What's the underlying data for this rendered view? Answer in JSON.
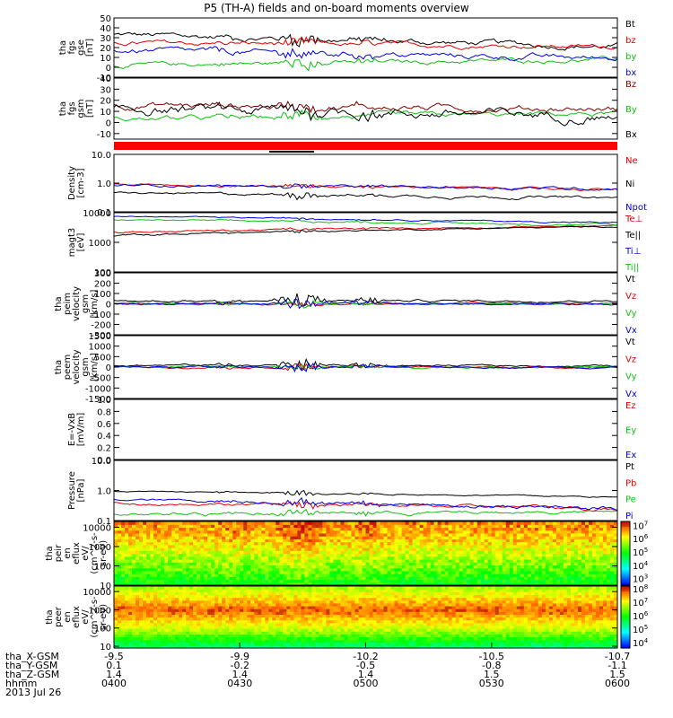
{
  "title": "P5 (TH-A) fields and on-board moments overview",
  "colors": {
    "black": "#000000",
    "red": "#e00000",
    "green": "#10c010",
    "blue": "#0000e0",
    "darkred": "#800000",
    "bar": "#ff0000"
  },
  "chart_data": [
    {
      "id": "fgs_gse",
      "type": "line",
      "ylabel": [
        "tha",
        "fgs",
        "gse",
        "[nT]"
      ],
      "ylim": [
        -10,
        50
      ],
      "ticks": [
        {
          "v": 50,
          "label": "50"
        },
        {
          "v": 40,
          "label": "40"
        },
        {
          "v": 30,
          "label": "30"
        },
        {
          "v": 20,
          "label": "20"
        },
        {
          "v": 10,
          "label": "10"
        },
        {
          "v": 0,
          "label": "0"
        },
        {
          "v": -10,
          "label": "-10"
        }
      ],
      "series": [
        {
          "name": "Bt",
          "color": "#000000",
          "base": 33,
          "amp": 4,
          "burst": 14,
          "trend": -12
        },
        {
          "name": "bz",
          "color": "#e00000",
          "base": 25,
          "amp": 3,
          "burst": 10,
          "trend": -4
        },
        {
          "name": "by",
          "color": "#10c010",
          "base": 2,
          "amp": 3,
          "burst": 12,
          "trend": 6
        },
        {
          "name": "bx",
          "color": "#0000e0",
          "base": 17,
          "amp": 4,
          "burst": 14,
          "trend": -8
        }
      ]
    },
    {
      "id": "fgs_gsm",
      "type": "line",
      "ylabel": [
        "tha",
        "fgs",
        "gsm",
        "[nT]"
      ],
      "ylim": [
        -15,
        40
      ],
      "ticks": [
        {
          "v": 40,
          "label": "40"
        },
        {
          "v": 30,
          "label": "30"
        },
        {
          "v": 20,
          "label": "20"
        },
        {
          "v": 10,
          "label": "10"
        },
        {
          "v": 0,
          "label": "0"
        },
        {
          "v": -10,
          "label": "-10"
        }
      ],
      "series": [
        {
          "name": "Bz",
          "color": "#800000",
          "base": 16,
          "amp": 4,
          "burst": 12,
          "trend": -4
        },
        {
          "name": "By",
          "color": "#10c010",
          "base": 3,
          "amp": 3,
          "burst": 10,
          "trend": 5
        },
        {
          "name": "Bx",
          "color": "#000000",
          "base": 12,
          "amp": 6,
          "burst": 16,
          "trend": -6
        }
      ]
    },
    {
      "id": "density",
      "type": "line",
      "log": true,
      "ylabel": [
        "Density",
        "[cm-3]"
      ],
      "ylim": [
        0.1,
        10
      ],
      "ticks": [
        {
          "v": 10,
          "label": "10.0"
        },
        {
          "v": 1,
          "label": "1.0"
        },
        {
          "v": 0.1,
          "label": "0.1"
        }
      ],
      "series": [
        {
          "name": "Ne",
          "color": "#e00000",
          "base": 0.9,
          "amp": 0.08,
          "burst": 0.3,
          "trend": -0.3
        },
        {
          "name": "Ni",
          "color": "#000000",
          "base": 0.45,
          "amp": 0.05,
          "burst": 0.2,
          "trend": -0.15
        },
        {
          "name": "Npot",
          "color": "#0000e0",
          "base": 0.85,
          "amp": 0.1,
          "burst": 0.3,
          "trend": -0.2
        }
      ]
    },
    {
      "id": "temperature",
      "type": "line",
      "log": true,
      "ylabel": [
        "magt3",
        "[eV]"
      ],
      "ylim": [
        100,
        10000
      ],
      "ticks": [
        {
          "v": 10000,
          "label": "10000"
        },
        {
          "v": 1000,
          "label": "1000"
        },
        {
          "v": 100,
          "label": "100"
        }
      ],
      "series": [
        {
          "name": "Te⊥",
          "color": "#e00000",
          "base": 2200,
          "amp": 250,
          "burst": 600,
          "trend": 1400
        },
        {
          "name": "Te||",
          "color": "#000000",
          "base": 1700,
          "amp": 200,
          "burst": 500,
          "trend": 1700
        },
        {
          "name": "Ti⊥",
          "color": "#0000e0",
          "base": 7500,
          "amp": 400,
          "burst": 900,
          "trend": -3000
        },
        {
          "name": "Ti||",
          "color": "#10c010",
          "base": 5800,
          "amp": 400,
          "burst": 900,
          "trend": -2000
        }
      ]
    },
    {
      "id": "peim_velocity",
      "type": "line",
      "ylabel": [
        "tha",
        "peim",
        "velocity",
        "gsm",
        "[km/s]"
      ],
      "ylim": [
        -300,
        300
      ],
      "ticks": [
        {
          "v": 300,
          "label": "300"
        },
        {
          "v": 200,
          "label": "200"
        },
        {
          "v": 100,
          "label": "100"
        },
        {
          "v": 0,
          "label": "0"
        },
        {
          "v": -100,
          "label": "-100"
        },
        {
          "v": -200,
          "label": "-200"
        },
        {
          "v": -300,
          "label": "-300"
        }
      ],
      "series": [
        {
          "name": "Vt",
          "color": "#000000",
          "base": 30,
          "amp": 15,
          "burst": 150,
          "trend": 0
        },
        {
          "name": "Vz",
          "color": "#e00000",
          "base": 0,
          "amp": 12,
          "burst": 60,
          "trend": 0
        },
        {
          "name": "Vy",
          "color": "#10c010",
          "base": 0,
          "amp": 12,
          "burst": 100,
          "trend": 0
        },
        {
          "name": "Vx",
          "color": "#0000e0",
          "base": 0,
          "amp": 12,
          "burst": 120,
          "trend": 0
        }
      ]
    },
    {
      "id": "peem_velocity",
      "type": "line",
      "ylabel": [
        "tha",
        "peem",
        "velocity",
        "gsm",
        "[km/s]"
      ],
      "ylim": [
        -1500,
        1500
      ],
      "ticks": [
        {
          "v": 1500,
          "label": "1500"
        },
        {
          "v": 1000,
          "label": "1000"
        },
        {
          "v": 500,
          "label": "500"
        },
        {
          "v": 0,
          "label": "0"
        },
        {
          "v": -500,
          "label": "-500"
        },
        {
          "v": -1000,
          "label": "-1000"
        },
        {
          "v": -1500,
          "label": "-1500"
        }
      ],
      "series": [
        {
          "name": "Vt",
          "color": "#000000",
          "base": 100,
          "amp": 60,
          "burst": 600,
          "trend": -50
        },
        {
          "name": "Vz",
          "color": "#e00000",
          "base": 0,
          "amp": 60,
          "burst": 350,
          "trend": 0
        },
        {
          "name": "Vy",
          "color": "#10c010",
          "base": 0,
          "amp": 60,
          "burst": 300,
          "trend": 0
        },
        {
          "name": "Vx",
          "color": "#0000e0",
          "base": 0,
          "amp": 60,
          "burst": 500,
          "trend": 0
        }
      ]
    },
    {
      "id": "efield",
      "type": "line",
      "ylabel": [
        "E=-VxB",
        "[mV/m]"
      ],
      "ylim": [
        0,
        1
      ],
      "ticks": [
        {
          "v": 1.0,
          "label": "1.0"
        },
        {
          "v": 0.8,
          "label": "0.8"
        },
        {
          "v": 0.6,
          "label": "0.6"
        },
        {
          "v": 0.4,
          "label": "0.4"
        },
        {
          "v": 0.2,
          "label": "0.2"
        },
        {
          "v": 0.0,
          "label": "0.0"
        }
      ],
      "series": [
        {
          "name": "Ez",
          "color": "#e00000",
          "empty": true
        },
        {
          "name": "Ey",
          "color": "#10c010",
          "empty": true
        },
        {
          "name": "Ex",
          "color": "#0000e0",
          "empty": true
        }
      ]
    },
    {
      "id": "pressure",
      "type": "line",
      "log": true,
      "ylabel": [
        "Pressure",
        "[nPa]"
      ],
      "ylim": [
        0.1,
        10
      ],
      "ticks": [
        {
          "v": 10,
          "label": "10.0"
        },
        {
          "v": 1,
          "label": "1.0"
        },
        {
          "v": 0.1,
          "label": "0.1"
        }
      ],
      "series": [
        {
          "name": "Pt",
          "color": "#000000",
          "base": 0.95,
          "amp": 0.05,
          "burst": 0.4,
          "trend": -0.35
        },
        {
          "name": "Pb",
          "color": "#e00000",
          "base": 0.38,
          "amp": 0.05,
          "burst": 0.2,
          "trend": -0.12
        },
        {
          "name": "Pe",
          "color": "#10c010",
          "base": 0.17,
          "amp": 0.03,
          "burst": 0.1,
          "trend": 0.02
        },
        {
          "name": "Pi",
          "color": "#0000e0",
          "base": 0.5,
          "amp": 0.06,
          "burst": 0.25,
          "trend": -0.25
        }
      ]
    },
    {
      "id": "peir_eflux",
      "type": "heatmap",
      "ylabel": [
        "tha",
        "peir",
        "en",
        "eflux",
        "eV/",
        "(cm^2-s-",
        "sr-eV)"
      ],
      "ylim": [
        10,
        20000
      ],
      "ticks": [
        {
          "v": 10000,
          "label": "10000"
        },
        {
          "v": 1000,
          "label": "1000"
        },
        {
          "v": 100,
          "label": "100"
        },
        {
          "v": 10,
          "label": "10"
        }
      ],
      "colorbar": {
        "labels": [
          {
            "v": 7,
            "base": "10",
            "exp": "7"
          },
          {
            "v": 6,
            "base": "10",
            "exp": "6"
          },
          {
            "v": 5,
            "base": "10",
            "exp": "5"
          },
          {
            "v": 4,
            "base": "10",
            "exp": "4"
          },
          {
            "v": 3,
            "base": "10",
            "exp": "3"
          }
        ],
        "range": [
          2.5,
          7.3
        ]
      }
    },
    {
      "id": "peer_eflux",
      "type": "heatmap",
      "ylabel": [
        "tha",
        "peer",
        "en",
        "eflux",
        "eV/",
        "(cm^2-s-",
        "sr-eV)"
      ],
      "ylim": [
        8,
        20000
      ],
      "ticks": [
        {
          "v": 10000,
          "label": "10000"
        },
        {
          "v": 1000,
          "label": "1000"
        },
        {
          "v": 100,
          "label": "100"
        },
        {
          "v": 10,
          "label": "10"
        }
      ],
      "colorbar": {
        "labels": [
          {
            "v": 8,
            "base": "10",
            "exp": "8"
          },
          {
            "v": 7,
            "base": "10",
            "exp": "7"
          },
          {
            "v": 6,
            "base": "10",
            "exp": "6"
          },
          {
            "v": 5,
            "base": "10",
            "exp": "5"
          },
          {
            "v": 4,
            "base": "10",
            "exp": "4"
          }
        ],
        "range": [
          3.6,
          8.2
        ]
      }
    }
  ],
  "x_axis": {
    "rows": [
      {
        "name": "tha_X-GSM",
        "values": [
          "-9.5",
          "-9.9",
          "-10.2",
          "-10.5",
          "-10.7"
        ]
      },
      {
        "name": "tha_Y-GSM",
        "values": [
          "0.1",
          "-0.2",
          "-0.5",
          "-0.8",
          "-1.1"
        ]
      },
      {
        "name": "tha_Z-GSM",
        "values": [
          "1.4",
          "1.4",
          "1.4",
          "1.5",
          "1.5"
        ]
      },
      {
        "name": "hhmm",
        "values": [
          "0400",
          "0430",
          "0500",
          "0530",
          "0600"
        ]
      }
    ],
    "date": "2013 Jul 26"
  }
}
